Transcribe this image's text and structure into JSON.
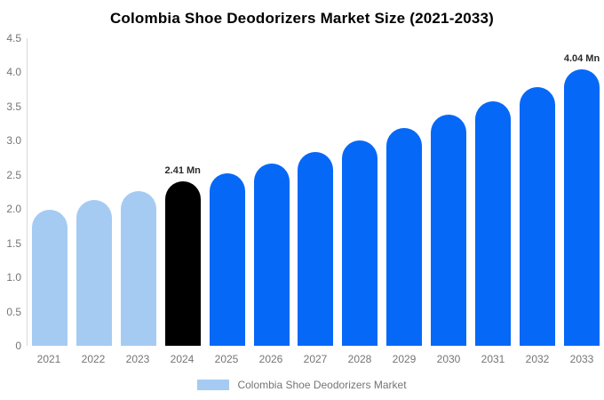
{
  "title": "Colombia Shoe Deodorizers Market Size (2021-2033)",
  "legend": {
    "label": "Colombia Shoe Deodorizers Market",
    "swatch_color": "#a5cbf3"
  },
  "colors": {
    "historical_bar": "#a5cbf3",
    "highlight_bar": "#000000",
    "forecast_bar": "#0668f7",
    "axis_line": "#d9d9d9",
    "tick_text": "#757575",
    "annotation_text": "#2b2b2b"
  },
  "chart_data": {
    "type": "bar",
    "title": "Colombia Shoe Deodorizers Market Size (2021-2033)",
    "xlabel": "",
    "ylabel": "",
    "unit": "Mn",
    "grid": false,
    "legend_position": "bottom",
    "ylim": [
      0,
      4.5
    ],
    "categories": [
      "2021",
      "2022",
      "2023",
      "2024",
      "2025",
      "2026",
      "2027",
      "2028",
      "2029",
      "2030",
      "2031",
      "2032",
      "2033"
    ],
    "values": [
      1.99,
      2.13,
      2.26,
      2.41,
      2.52,
      2.67,
      2.84,
      3.0,
      3.19,
      3.38,
      3.58,
      3.78,
      4.04
    ],
    "bar_colors": [
      "#a5cbf3",
      "#a5cbf3",
      "#a5cbf3",
      "#000000",
      "#0668f7",
      "#0668f7",
      "#0668f7",
      "#0668f7",
      "#0668f7",
      "#0668f7",
      "#0668f7",
      "#0668f7",
      "#0668f7"
    ],
    "annotations": [
      {
        "category": "2024",
        "text": "2.41 Mn"
      },
      {
        "category": "2033",
        "text": "4.04 Mn"
      }
    ],
    "y_ticks": [
      {
        "label": "4.5",
        "value": 4.5
      },
      {
        "label": "4.0",
        "value": 4.0
      },
      {
        "label": "3.5",
        "value": 3.5
      },
      {
        "label": "3.0",
        "value": 3.0
      },
      {
        "label": "2.5",
        "value": 2.5
      },
      {
        "label": "2.0",
        "value": 2.0
      },
      {
        "label": "1.5",
        "value": 1.5
      },
      {
        "label": "1.0",
        "value": 1.0
      },
      {
        "label": "0.5",
        "value": 0.5
      },
      {
        "label": "0",
        "value": 0
      }
    ]
  }
}
